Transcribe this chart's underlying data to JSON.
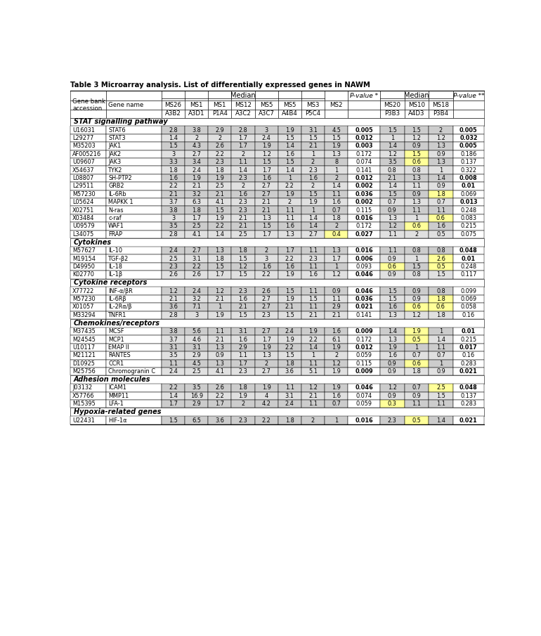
{
  "title": "Table 3 Microarray analysis. List of differentially expressed genes in NAWM",
  "sections": [
    {
      "name": "STAT signalling pathway",
      "rows": [
        [
          "U16031",
          "STAT6",
          "2.8",
          "3.8",
          "2.9",
          "2.8",
          "3",
          "1.9",
          "3.1",
          "4.5",
          "0.005",
          "1.5",
          "1.5",
          "2",
          "0.005",
          []
        ],
        [
          "L29277",
          "STAT3",
          "1.4",
          "2",
          "2",
          "1.7",
          "2.4",
          "1.5",
          "1.5",
          "1.5",
          "0.012",
          "1",
          "1.2",
          "1.2",
          "0.032",
          []
        ],
        [
          "M35203",
          "JAK1",
          "1.5",
          "4.3",
          "2.6",
          "1.7",
          "1.9",
          "1.4",
          "2.1",
          "1.9",
          "0.003",
          "1.4",
          "0.9",
          "1.3",
          "0.005",
          []
        ],
        [
          "AF005216",
          "JAK2",
          "3",
          "2.7",
          "2.2",
          "2",
          "1.2",
          "1.6",
          "1",
          "1.3",
          "0.172",
          "1.2",
          "1.5",
          "0.9",
          "0.186",
          [
            "MS10"
          ]
        ],
        [
          "U09607",
          "JAK3",
          "3.3",
          "3.4",
          "2.3",
          "1.1",
          "1.5",
          "1.5",
          "2",
          "8",
          "0.074",
          "3.5",
          "0.6",
          "1.3",
          "0.137",
          [
            "A4D3"
          ]
        ],
        [
          "X54637",
          "TYK2",
          "1.8",
          "2.4",
          "1.8",
          "1.4",
          "1.7",
          "1.4",
          "2.3",
          "1",
          "0.141",
          "0.8",
          "0.8",
          "1",
          "0.322",
          []
        ],
        [
          "L08807",
          "SH-PTP2",
          "1.6",
          "1.9",
          "1.9",
          "2.3",
          "1.6",
          "1",
          "1.6",
          "2",
          "0.012",
          "2.1",
          "1.3",
          "1.4",
          "0.008",
          []
        ],
        [
          "L29511",
          "GRB2",
          "2.2",
          "2.1",
          "2.5",
          "2",
          "2.7",
          "2.2",
          "2",
          "1.4",
          "0.002",
          "1.4",
          "1.1",
          "0.9",
          "0.01",
          []
        ],
        [
          "M57230",
          "IL-6Rb",
          "2.1",
          "3.2",
          "2.1",
          "1.6",
          "2.7",
          "1.9",
          "1.5",
          "1.1",
          "0.036",
          "1.5",
          "0.9",
          "1.8",
          "0.069",
          [
            "P3B4"
          ]
        ],
        [
          "L05624",
          "MAPKK 1",
          "3.7",
          "6.3",
          "4.1",
          "2.3",
          "2.1",
          "2",
          "1.9",
          "1.6",
          "0.002",
          "0.7",
          "1.3",
          "0.7",
          "0.013",
          []
        ],
        [
          "X02751",
          "N-ras",
          "3.8",
          "1.8",
          "1.5",
          "2.3",
          "2.1",
          "1.1",
          "1",
          "0.7",
          "0.115",
          "0.9",
          "1.1",
          "1.1",
          "0.248",
          []
        ],
        [
          "X03484",
          "c-raf",
          "3",
          "1.7",
          "1.9",
          "2.1",
          "1.3",
          "1.1",
          "1.4",
          "1.8",
          "0.016",
          "1.3",
          "1",
          "0.6",
          "0.083",
          [
            "P3B4"
          ]
        ],
        [
          "U09579",
          "WAF1",
          "3.5",
          "2.5",
          "2.2",
          "2.1",
          "1.5",
          "1.6",
          "1.4",
          "2",
          "0.172",
          "1.2",
          "0.6",
          "1.6",
          "0.215",
          [
            "A4D3"
          ]
        ],
        [
          "L34075",
          "FRAP",
          "2.8",
          "4.1",
          "1.4",
          "2.5",
          "1.7",
          "1.3",
          "2.7",
          "0.4",
          "0.027",
          "1.1",
          "2",
          "0.5",
          "0.075",
          [
            "P5C4"
          ]
        ]
      ]
    },
    {
      "name": "Cytokines",
      "rows": [
        [
          "M57627",
          "IL-10",
          "2.4",
          "2.7",
          "1.3",
          "1.8",
          "2",
          "1.7",
          "1.1",
          "1.3",
          "0.016",
          "1.1",
          "0.8",
          "0.8",
          "0.048",
          []
        ],
        [
          "M19154",
          "TGF-β2",
          "2.5",
          "3.1",
          "1.8",
          "1.5",
          "3",
          "2.2",
          "2.3",
          "1.7",
          "0.006",
          "0.9",
          "1",
          "2.6",
          "0.01",
          [
            "P3B4"
          ]
        ],
        [
          "D49950",
          "IL-18",
          "2.3",
          "2.2",
          "1.5",
          "1.2",
          "1.6",
          "1.6",
          "1.1",
          "1",
          "0.093",
          "0.6",
          "1.5",
          "0.5",
          "0.248",
          [
            "MS20",
            "MS18"
          ]
        ],
        [
          "K02770",
          "IL-1β",
          "2.6",
          "2.6",
          "1.7",
          "1.5",
          "2.2",
          "1.9",
          "1.6",
          "1.2",
          "0.046",
          "0.9",
          "0.8",
          "1.5",
          "0.117",
          []
        ]
      ]
    },
    {
      "name": "Cytokine receptors",
      "rows": [
        [
          "X77722",
          "INF-α/βR",
          "1.2",
          "2.4",
          "1.2",
          "2.3",
          "2.6",
          "1.5",
          "1.1",
          "0.9",
          "0.046",
          "1.5",
          "0.9",
          "0.8",
          "0.099",
          []
        ],
        [
          "M57230",
          "IL-6Rβ",
          "2.1",
          "3.2",
          "2.1",
          "1.6",
          "2.7",
          "1.9",
          "1.5",
          "1.1",
          "0.036",
          "1.5",
          "0.9",
          "1.8",
          "0.069",
          [
            "P3B4"
          ]
        ],
        [
          "X01057",
          "IL-2Rα/β",
          "3.6",
          "7.1",
          "1",
          "2.1",
          "2.7",
          "2.1",
          "1.1",
          "2.9",
          "0.021",
          "1.6",
          "0.6",
          "0.6",
          "0.058",
          [
            "A4D3",
            "P3B4"
          ]
        ],
        [
          "M33294",
          "TNFR1",
          "2.8",
          "3",
          "1.9",
          "1.5",
          "2.3",
          "1.5",
          "2.1",
          "2.1",
          "0.141",
          "1.3",
          "1.2",
          "1.8",
          "0.16",
          []
        ]
      ]
    },
    {
      "name": "Chemokines/receptors",
      "rows": [
        [
          "M37435",
          "MCSF",
          "3.8",
          "5.6",
          "1.1",
          "3.1",
          "2.7",
          "2.4",
          "1.9",
          "1.6",
          "0.009",
          "1.4",
          "1.9",
          "1",
          "0.01",
          [
            "MS10"
          ]
        ],
        [
          "M24545",
          "MCP1",
          "3.7",
          "4.6",
          "2.1",
          "1.6",
          "1.7",
          "1.9",
          "2.2",
          "6.1",
          "0.172",
          "1.3",
          "0.5",
          "1.4",
          "0.215",
          [
            "A4D3"
          ]
        ],
        [
          "U10117",
          "EMAP II",
          "3.1",
          "3.1",
          "1.3",
          "2.9",
          "1.9",
          "2.2",
          "1.4",
          "1.9",
          "0.012",
          "1.9",
          "1",
          "1.1",
          "0.017",
          []
        ],
        [
          "M21121",
          "RANTES",
          "3.5",
          "2.9",
          "0.9",
          "1.1",
          "1.3",
          "1.5",
          "1",
          "2",
          "0.059",
          "1.6",
          "0.7",
          "0.7",
          "0.16",
          []
        ],
        [
          "D10925",
          "CCR1",
          "1.1",
          "4.5",
          "1.3",
          "1.7",
          "2",
          "1.8",
          "1.1",
          "1.2",
          "0.115",
          "0.9",
          "0.6",
          "1",
          "0.283",
          [
            "A4D3"
          ]
        ],
        [
          "M25756",
          "Chromogranin C",
          "2.4",
          "2.5",
          "4.1",
          "2.3",
          "2.7",
          "3.6",
          "5.1",
          "1.9",
          "0.009",
          "0.9",
          "1.8",
          "0.9",
          "0.021",
          []
        ]
      ]
    },
    {
      "name": "Adhesion molecules",
      "rows": [
        [
          "J03132",
          "ICAM1",
          "2.2",
          "3.5",
          "2.6",
          "1.8",
          "1.9",
          "1.1",
          "1.2",
          "1.9",
          "0.046",
          "1.2",
          "0.7",
          "2.5",
          "0.048",
          [
            "P3B4"
          ]
        ],
        [
          "X57766",
          "MMP11",
          "1.4",
          "16.9",
          "2.2",
          "1.9",
          "4",
          "3.1",
          "2.1",
          "1.6",
          "0.074",
          "0.9",
          "0.9",
          "1.5",
          "0.137",
          []
        ],
        [
          "M15395",
          "LFA-1",
          "1.7",
          "2.9",
          "1.7",
          "2",
          "4.2",
          "2.4",
          "1.1",
          "0.7",
          "0.059",
          "0.3",
          "1.1",
          "1.1",
          "0.283",
          [
            "MS20"
          ]
        ]
      ]
    },
    {
      "name": "Hypoxia-related genes",
      "rows": [
        [
          "U22431",
          "HIF-1α",
          "1.5",
          "6.5",
          "3.6",
          "2.3",
          "2.2",
          "1.8",
          "2",
          "1",
          "0.016",
          "2.3",
          "0.5",
          "1.4",
          "0.021",
          [
            "A4D3"
          ]
        ]
      ]
    }
  ],
  "yellow_col_map": {
    "MS26": 2,
    "A3B2": 2,
    "P5C4": 9,
    "MS20": 11,
    "P3B3": 11,
    "MS10": 12,
    "A4D3": 12,
    "MS18": 13,
    "P3B4": 13
  },
  "col_widths_rel": [
    0.72,
    1.12,
    0.47,
    0.47,
    0.47,
    0.47,
    0.47,
    0.47,
    0.47,
    0.47,
    0.65,
    0.49,
    0.49,
    0.49,
    0.63
  ]
}
